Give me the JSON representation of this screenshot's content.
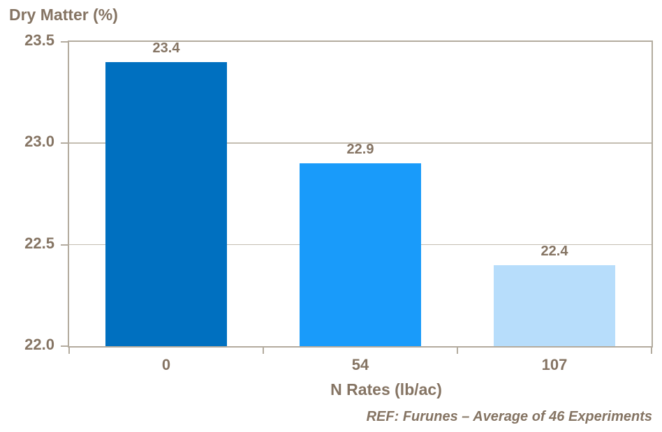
{
  "chart_data": {
    "type": "bar",
    "title": "Dry Matter (%)",
    "xlabel": "N Rates (lb/ac)",
    "ylabel": "Dry Matter (%)",
    "categories": [
      "0",
      "54",
      "107"
    ],
    "values": [
      23.4,
      22.9,
      22.4
    ],
    "bar_labels": [
      "23.4",
      "22.9",
      "22.4"
    ],
    "bar_colors": [
      "#0070C0",
      "#199BFA",
      "#B7DDFB"
    ],
    "ylim": [
      22.0,
      23.5
    ],
    "yticks": [
      22.0,
      22.5,
      23.0,
      23.5
    ],
    "ytick_labels": [
      "22.0",
      "22.5",
      "23.0",
      "23.5"
    ],
    "grid": true,
    "legend": "none",
    "annotation": "REF: Furunes – Average of 46 Experiments",
    "colors": {
      "text": "#857463",
      "axis": "#B3AB9E",
      "grid": "#C4BDB1",
      "background": "#FFFFFF"
    }
  }
}
